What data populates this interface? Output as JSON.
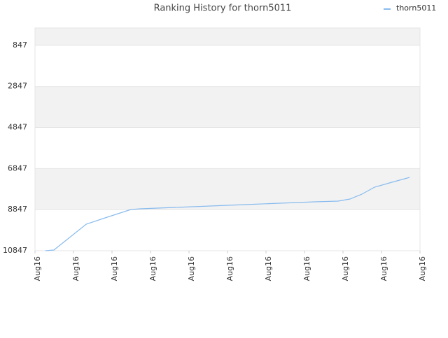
{
  "chart_data": {
    "type": "line",
    "title": "Ranking History for thorn5011",
    "legend": "top-right",
    "grid": true,
    "y_inverted": true,
    "xlim": [
      0,
      10
    ],
    "xticks": [
      {
        "value": 0,
        "label": "Aug16"
      },
      {
        "value": 1,
        "label": "Aug16"
      },
      {
        "value": 2,
        "label": "Aug16"
      },
      {
        "value": 3,
        "label": "Aug16"
      },
      {
        "value": 4,
        "label": "Aug16"
      },
      {
        "value": 5,
        "label": "Aug16"
      },
      {
        "value": 6,
        "label": "Aug16"
      },
      {
        "value": 7,
        "label": "Aug16"
      },
      {
        "value": 8,
        "label": "Aug16"
      },
      {
        "value": 9,
        "label": "Aug16"
      },
      {
        "value": 10,
        "label": "Aug16"
      }
    ],
    "ylim": [
      10847,
      0
    ],
    "yticks": [
      847,
      2847,
      4847,
      6847,
      8847,
      10847
    ],
    "x": [
      0.27,
      0.49,
      1.33,
      1.82,
      2.49,
      2.73,
      3.64,
      4.55,
      5.45,
      6.36,
      7.27,
      7.87,
      8.18,
      8.49,
      8.82,
      9.27,
      9.73
    ],
    "series": [
      {
        "name": "thorn5011",
        "color": "#88bbee",
        "values": [
          10847,
          10813,
          9554,
          9248,
          8840,
          8806,
          8738,
          8670,
          8602,
          8534,
          8466,
          8432,
          8330,
          8092,
          7752,
          7514,
          7276
        ]
      }
    ]
  }
}
